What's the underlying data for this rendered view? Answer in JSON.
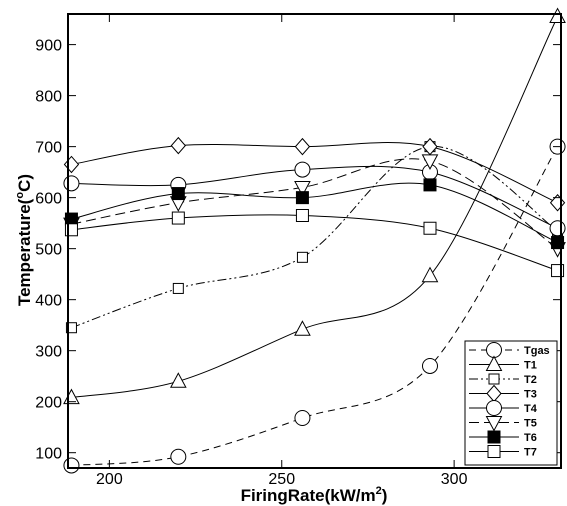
{
  "chart_data": {
    "type": "line",
    "title": "",
    "xlabel": "FiringRate(kW/m",
    "xlabel_sup": "2",
    "xlabel_end": ")",
    "ylabel": "Temperature(",
    "ylabel_sup": "o",
    "ylabel_end": "C)",
    "xlim": [
      188,
      331
    ],
    "ylim": [
      70,
      960
    ],
    "xticks": [
      200,
      250,
      300
    ],
    "yticks": [
      100,
      200,
      300,
      400,
      500,
      600,
      700,
      800,
      900
    ],
    "x": [
      189,
      220,
      256,
      293,
      330
    ],
    "grid": false,
    "legend_position": "bottom-right",
    "series": [
      {
        "name": "Tgas",
        "marker": "circle",
        "fill": "none",
        "dash": "7,5",
        "values": [
          75,
          92,
          168,
          270,
          700
        ]
      },
      {
        "name": "T1",
        "marker": "triangle-up",
        "fill": "none",
        "dash": "",
        "values": [
          208,
          240,
          342,
          447,
          955
        ]
      },
      {
        "name": "T2",
        "marker": "square-small",
        "fill": "none",
        "dash": "9,3,2,3,2,3",
        "values": [
          345,
          422,
          483,
          700,
          535
        ]
      },
      {
        "name": "T3",
        "marker": "diamond",
        "fill": "none",
        "dash": "",
        "values": [
          665,
          702,
          700,
          700,
          590
        ]
      },
      {
        "name": "T4",
        "marker": "circle",
        "fill": "none",
        "dash": "",
        "values": [
          628,
          625,
          655,
          650,
          540
        ]
      },
      {
        "name": "T5",
        "marker": "triangle-down",
        "fill": "none",
        "dash": "10,5",
        "values": [
          548,
          590,
          620,
          672,
          500
        ]
      },
      {
        "name": "T6",
        "marker": "square",
        "fill": "solid",
        "dash": "",
        "values": [
          558,
          608,
          600,
          625,
          512
        ]
      },
      {
        "name": "T7",
        "marker": "square",
        "fill": "none",
        "dash": "",
        "values": [
          537,
          560,
          565,
          540,
          457
        ]
      }
    ]
  }
}
